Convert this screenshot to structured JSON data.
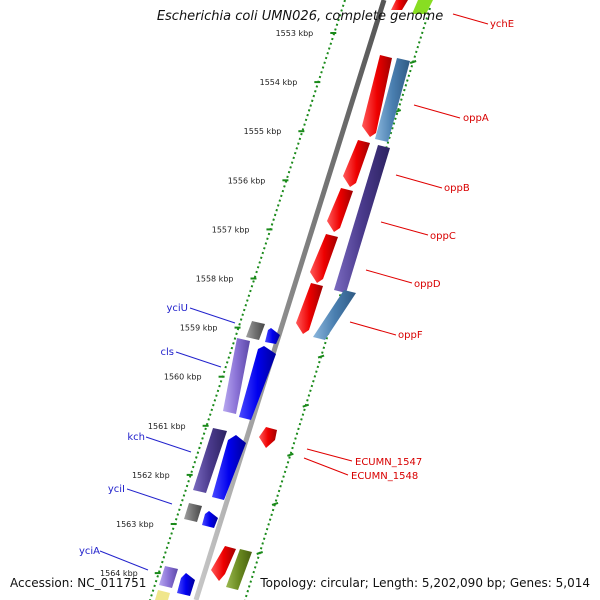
{
  "title": "Escherichia coli UMN026, complete genome",
  "footer": {
    "accession": "Accession: NC_011751",
    "topology": "Topology: circular; Length: 5,202,090 bp; Genes: 5,014"
  },
  "ticks": [
    {
      "label": "1553 kbp"
    },
    {
      "label": "1554 kbp"
    },
    {
      "label": "1555 kbp"
    },
    {
      "label": "1556 kbp"
    },
    {
      "label": "1557 kbp"
    },
    {
      "label": "1558 kbp"
    },
    {
      "label": "1559 kbp"
    },
    {
      "label": "1560 kbp"
    },
    {
      "label": "1561 kbp"
    },
    {
      "label": "1562 kbp"
    },
    {
      "label": "1563 kbp"
    },
    {
      "label": "1564 kbp"
    }
  ],
  "gene_labels_right": [
    "ychE",
    "oppA",
    "oppB",
    "oppC",
    "oppD",
    "oppF",
    "ECUMN_1547",
    "ECUMN_1548"
  ],
  "gene_labels_left": [
    "yciU",
    "cls",
    "kch",
    "yciI",
    "yciA"
  ],
  "colors": {
    "forward_cds": "#ee0000",
    "reverse_cds": "#0000ee",
    "steelblue_feature": "#4a7fb0",
    "purple_feature": "#4a3a8c",
    "gray_feature": "#707070",
    "lavender_feature": "#8a72d6",
    "olive_feature": "#6a8a20",
    "backbone": "#888888",
    "tick_green": "#1a8a1a",
    "label_red": "#d80000",
    "label_blue": "#2222cc"
  }
}
